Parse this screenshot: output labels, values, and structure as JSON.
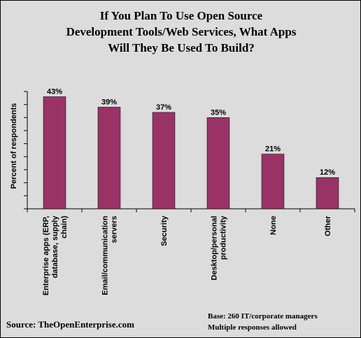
{
  "chart_data": {
    "type": "bar",
    "title": "If You  Plan To Use Open Source\nDevelopment Tools/Web Services, What Apps\nWill They Be Used To Build?",
    "ylabel": "Percent of respondents",
    "xlabel": "",
    "categories": [
      "Enterprise apps (ERP, database, supply chain)",
      "Email/communication servers",
      "Security",
      "Desktop/personal productivity",
      "None",
      "Other"
    ],
    "category_lines": [
      [
        "Enterprise apps (ERP,",
        "database, supply",
        "chain)"
      ],
      [
        "Email/communication",
        "servers"
      ],
      [
        "Security"
      ],
      [
        "Desktop/personal",
        "productivity"
      ],
      [
        "None"
      ],
      [
        "Other"
      ]
    ],
    "values": [
      43,
      39,
      37,
      35,
      21,
      12
    ],
    "value_labels": [
      "43%",
      "39%",
      "37%",
      "35%",
      "21%",
      "12%"
    ],
    "ylim": [
      0,
      45
    ],
    "y_gridlines": false,
    "bar_color": "#993366",
    "background_color": "#dcdcdc"
  },
  "footer": {
    "source": "Source:  TheOpenEnterprise.com",
    "base": "Base: 260 IT/corporate managers",
    "multiple": "Multiple responses allowed"
  }
}
